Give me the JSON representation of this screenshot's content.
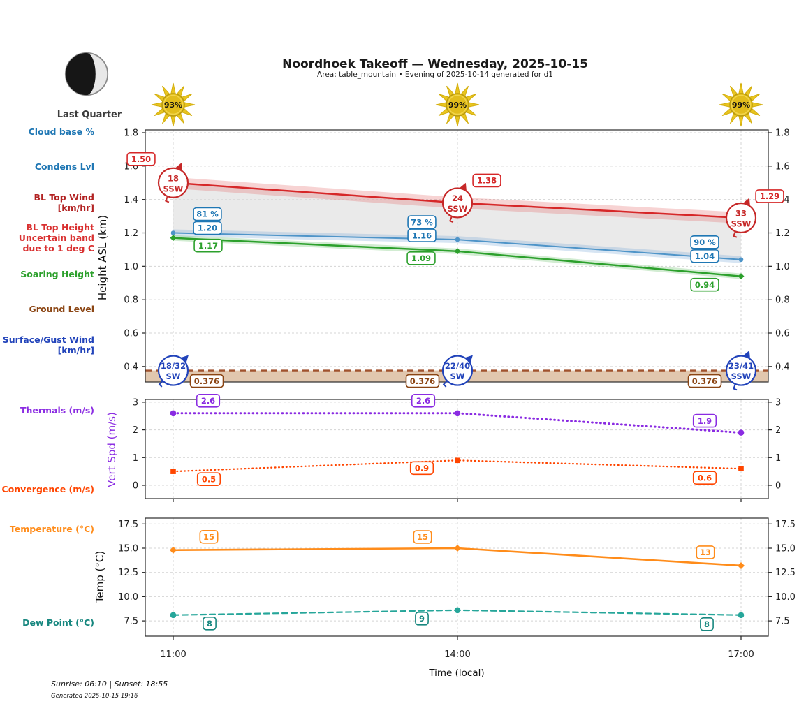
{
  "header": {
    "title": "Noordhoek Takeoff — Wednesday, 2025-10-15",
    "subtitle": "Area: table_mountain • Evening of 2025-10-14 generated for d1",
    "moon_phase": "Last Quarter",
    "moon_icon": "last-quarter-moon-icon"
  },
  "row_labels": [
    {
      "name": "cloud-base-pct",
      "text": "Cloud base %",
      "color": "#1f77b4"
    },
    {
      "name": "condens-lvl",
      "text": "Condens Lvl",
      "color": "#1f77b4"
    },
    {
      "name": "bl-top-wind",
      "text": "BL Top Wind\n[km/hr]",
      "color": "#b22222"
    },
    {
      "name": "bl-top-height-uncertainty",
      "text": "BL Top Height\nUncertain band\ndue to 1 deg C",
      "color": "#d93030"
    },
    {
      "name": "soaring-height",
      "text": "Soaring Height",
      "color": "#2ca02c"
    },
    {
      "name": "ground-level",
      "text": "Ground Level",
      "color": "#8b4513"
    },
    {
      "name": "surface-gust-wind",
      "text": "Surface/Gust Wind\n[km/hr]",
      "color": "#2143ba"
    },
    {
      "name": "thermals",
      "text": "Thermals (m/s)",
      "color": "#8a2be2"
    },
    {
      "name": "convergence",
      "text": "Convergence (m/s)",
      "color": "#ff4500"
    },
    {
      "name": "temperature",
      "text": "Temperature (°C)",
      "color": "#ff8c1a"
    },
    {
      "name": "dew-point",
      "text": "Dew Point (°C)",
      "color": "#17877f"
    }
  ],
  "chart_data": [
    {
      "type": "line",
      "ylabel": "Height ASL (km)",
      "x": [
        "11:00",
        "14:00",
        "17:00"
      ],
      "ytick_labels": [
        "1.8",
        "1.6",
        "1.4",
        "1.2",
        "1.0",
        "0.8",
        "0.6",
        "0.4"
      ],
      "ytick_values": [
        1.8,
        1.6,
        1.4,
        1.2,
        1.0,
        0.8,
        0.6,
        0.4
      ],
      "ylim": [
        0.31,
        1.82
      ],
      "grid": true,
      "sun_flux_pct": [
        "93%",
        "99%",
        "99%"
      ],
      "series": [
        {
          "name": "Condensation Level",
          "color": "#d62728",
          "band_color": "#e36d6d",
          "values": [
            1.5,
            1.38,
            1.29
          ],
          "point_labels": [
            "1.50",
            "1.38",
            "1.29"
          ],
          "style": "solid",
          "marker": "none"
        },
        {
          "name": "BL Top Height",
          "color": "#1f77b4",
          "line_color": "#4e94c8",
          "band_color": "#7aa9d8",
          "values": [
            1.2,
            1.16,
            1.04
          ],
          "point_labels": [
            "1.20",
            "1.16",
            "1.04"
          ],
          "cloud_base_pct": [
            "81 %",
            "73 %",
            "90 %"
          ],
          "style": "solid",
          "marker": "circle"
        },
        {
          "name": "Soaring Height",
          "color": "#2ca02c",
          "band_color": "#6abf69",
          "values": [
            1.17,
            1.09,
            0.94
          ],
          "point_labels": [
            "1.17",
            "1.09",
            "0.94"
          ],
          "style": "solid",
          "marker": "diamond"
        },
        {
          "name": "Ground Level",
          "color": "#a0522d",
          "label_color": "#8b4513",
          "fill_color": "#c8996b",
          "values": [
            0.376,
            0.376,
            0.376
          ],
          "point_labels": [
            "0.376",
            "0.376",
            "0.376"
          ],
          "style": "dashed",
          "marker": "none"
        }
      ],
      "bl_top_wind": {
        "color": "#c62828",
        "points": [
          {
            "speed": "18",
            "dir": "SSW"
          },
          {
            "speed": "24",
            "dir": "SSW"
          },
          {
            "speed": "33",
            "dir": "SSW"
          }
        ]
      },
      "surface_gust_wind": {
        "color": "#2143ba",
        "points": [
          {
            "speed": "18/32",
            "dir": "SW"
          },
          {
            "speed": "22/40",
            "dir": "SW"
          },
          {
            "speed": "23/41",
            "dir": "SSW"
          }
        ]
      }
    },
    {
      "type": "line",
      "ylabel": "Vert Spd (m/s)",
      "ylabel_color": "#8a2be2",
      "x": [
        "11:00",
        "14:00",
        "17:00"
      ],
      "ytick_labels": [
        "3",
        "2",
        "1",
        "0"
      ],
      "ytick_values": [
        3,
        2,
        1,
        0
      ],
      "ylim": [
        -0.55,
        3.2
      ],
      "grid": true,
      "series": [
        {
          "name": "Thermals (m/s)",
          "color": "#8a2be2",
          "values": [
            2.6,
            2.6,
            1.9
          ],
          "point_labels": [
            "2.6",
            "2.6",
            "1.9"
          ],
          "style": "dotted",
          "marker": "circle"
        },
        {
          "name": "Convergence (m/s)",
          "color": "#ff4500",
          "values": [
            0.5,
            0.9,
            0.6
          ],
          "point_labels": [
            "0.5",
            "0.9",
            "0.6"
          ],
          "style": "dotted",
          "marker": "square"
        }
      ]
    },
    {
      "type": "line",
      "ylabel": "Temp (°C)",
      "xlabel": "Time (local)",
      "x": [
        "11:00",
        "14:00",
        "17:00"
      ],
      "ytick_labels": [
        "17.5",
        "15.0",
        "12.5",
        "10.0",
        "7.5"
      ],
      "ytick_values": [
        17.5,
        15.0,
        12.5,
        10.0,
        7.5
      ],
      "ylim": [
        5.9,
        17.9
      ],
      "grid": true,
      "series": [
        {
          "name": "Temperature (°C)",
          "color": "#ff8c1a",
          "values": [
            14.8,
            15.0,
            13.2
          ],
          "point_labels": [
            "15",
            "15",
            "13"
          ],
          "style": "solid",
          "marker": "diamond"
        },
        {
          "name": "Dew Point (°C)",
          "color": "#26a69a",
          "label_color": "#17877f",
          "values": [
            8.1,
            8.6,
            8.1
          ],
          "point_labels": [
            "8",
            "9",
            "8"
          ],
          "style": "dashed",
          "marker": "circle"
        }
      ]
    }
  ],
  "footer": {
    "sun_times": "Sunrise: 06:10 | Sunset: 18:55",
    "generated": "Generated 2025-10-15 19:16"
  }
}
